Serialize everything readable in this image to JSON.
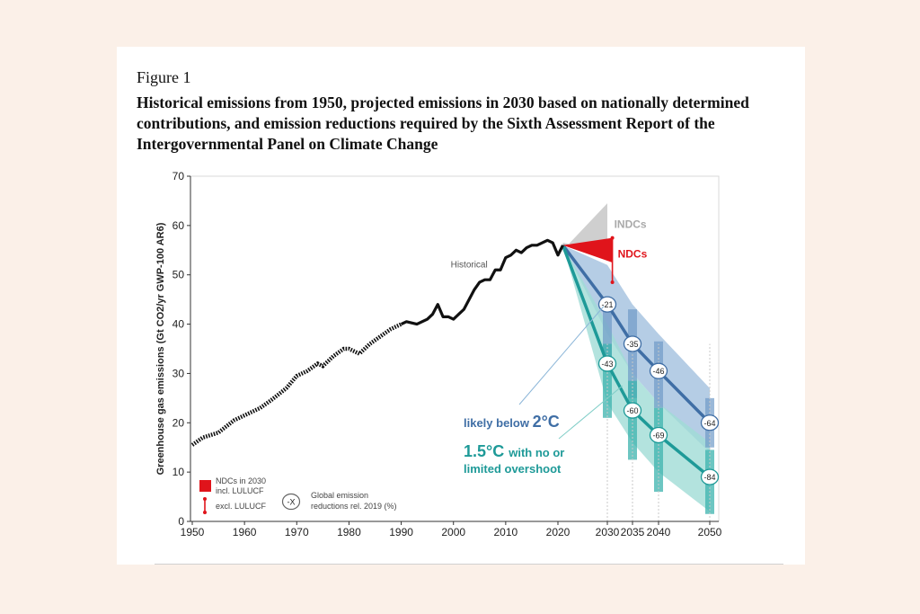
{
  "figure": {
    "label": "Figure 1",
    "title": "Historical emissions from 1950, projected emissions in 2030 based on nationally determined contributions, and emission reductions required by the Sixth Assessment Report of the Intergovernmental Panel on Climate Change"
  },
  "chart_data": {
    "type": "line",
    "ylabel": "Greenhouse gas emissions (Gt CO2/yr GWP-100 AR6)",
    "ylim": [
      0,
      70
    ],
    "yticks": [
      "0",
      "10",
      "20",
      "30",
      "40",
      "50",
      "60",
      "70"
    ],
    "xticks": [
      "1950",
      "1960",
      "1970",
      "1980",
      "1990",
      "2000",
      "2010",
      "2020",
      "2030",
      "2035",
      "2040",
      "2050"
    ],
    "historical": {
      "label": "Historical",
      "years": [
        1950,
        1952,
        1955,
        1958,
        1960,
        1963,
        1965,
        1968,
        1970,
        1972,
        1974,
        1975,
        1977,
        1979,
        1980,
        1982,
        1984,
        1986,
        1988,
        1990,
        1991,
        1993,
        1995,
        1996,
        1997,
        1998,
        1999,
        2000,
        2001,
        2002,
        2003,
        2004,
        2005,
        2006,
        2007,
        2008,
        2009,
        2010,
        2011,
        2012,
        2013,
        2014,
        2015,
        2016,
        2017,
        2018,
        2019,
        2020,
        2021
      ],
      "values": [
        15.5,
        17,
        18,
        20.5,
        21.5,
        23,
        24.5,
        27,
        29.5,
        30.5,
        32,
        31.5,
        33.5,
        35,
        35,
        34,
        36,
        37.5,
        39,
        40,
        40.5,
        40,
        41,
        42,
        44,
        41.5,
        41.5,
        41,
        42,
        43,
        45,
        47,
        48.5,
        49,
        49,
        51,
        51,
        53.5,
        54,
        55,
        54.5,
        55.5,
        56,
        56,
        56.5,
        57,
        56.5,
        54,
        56
      ]
    },
    "indc": {
      "label": "INDCs",
      "years": [
        2021,
        2030
      ],
      "low": [
        55,
        55
      ],
      "high": [
        56.5,
        64.5
      ]
    },
    "ndc": {
      "label": "NDCs",
      "incl_lulucf": [
        52.5,
        57.5
      ],
      "excl_lulucf": [
        48.5,
        57.5
      ],
      "color": "#e0141b"
    },
    "series": [
      {
        "name": "likely below 2°C",
        "line_label_prefix": "likely below",
        "line_label_temp": "2°C",
        "color": "#3f6ea5",
        "band_color": "#9cbcdc",
        "years": [
          2021,
          2030,
          2035,
          2040,
          2050
        ],
        "median": [
          56,
          44,
          36,
          30.5,
          20
        ],
        "low": [
          56,
          38,
          30,
          24,
          14
        ],
        "high": [
          56,
          52,
          44,
          38,
          27
        ],
        "reductions": [
          {
            "year": 2030,
            "label": "-21"
          },
          {
            "year": 2035,
            "label": "-35"
          },
          {
            "year": 2040,
            "label": "-46"
          },
          {
            "year": 2050,
            "label": "-64"
          }
        ]
      },
      {
        "name": "1.5°C with no or limited overshoot",
        "line_label_temp": "1.5°C",
        "line_label_rest": "with no or",
        "line_label_line2": "limited overshoot",
        "color": "#1e9a98",
        "band_color": "#a0dcd6",
        "years": [
          2021,
          2030,
          2035,
          2040,
          2050
        ],
        "median": [
          56,
          32,
          22.5,
          17.5,
          9
        ],
        "low": [
          56,
          24,
          16,
          10,
          2
        ],
        "high": [
          56,
          40,
          30,
          24,
          16
        ],
        "reductions": [
          {
            "year": 2030,
            "label": "-43"
          },
          {
            "year": 2035,
            "label": "-60"
          },
          {
            "year": 2040,
            "label": "-69"
          },
          {
            "year": 2050,
            "label": "-84"
          }
        ]
      }
    ],
    "scenario_bars": {
      "2C": [
        {
          "year": 2030,
          "low": 33,
          "high": 43
        },
        {
          "year": 2035,
          "low": 25,
          "high": 43
        },
        {
          "year": 2040,
          "low": 23,
          "high": 36.5
        },
        {
          "year": 2050,
          "low": 15,
          "high": 25
        }
      ],
      "1.5C": [
        {
          "year": 2030,
          "low": 21,
          "high": 36
        },
        {
          "year": 2035,
          "low": 12.5,
          "high": 28.5
        },
        {
          "year": 2040,
          "low": 6,
          "high": 23
        },
        {
          "year": 2050,
          "low": 1.5,
          "high": 14.5
        }
      ]
    },
    "legend": {
      "ndc_incl_line1": "NDCs in 2030",
      "ndc_incl_line2": "incl. LULUCF",
      "ndc_excl": "excl. LULUCF",
      "marker_symbol": "-X",
      "marker_line1": "Global emission",
      "marker_line2": "reductions rel. 2019 (%)"
    }
  }
}
